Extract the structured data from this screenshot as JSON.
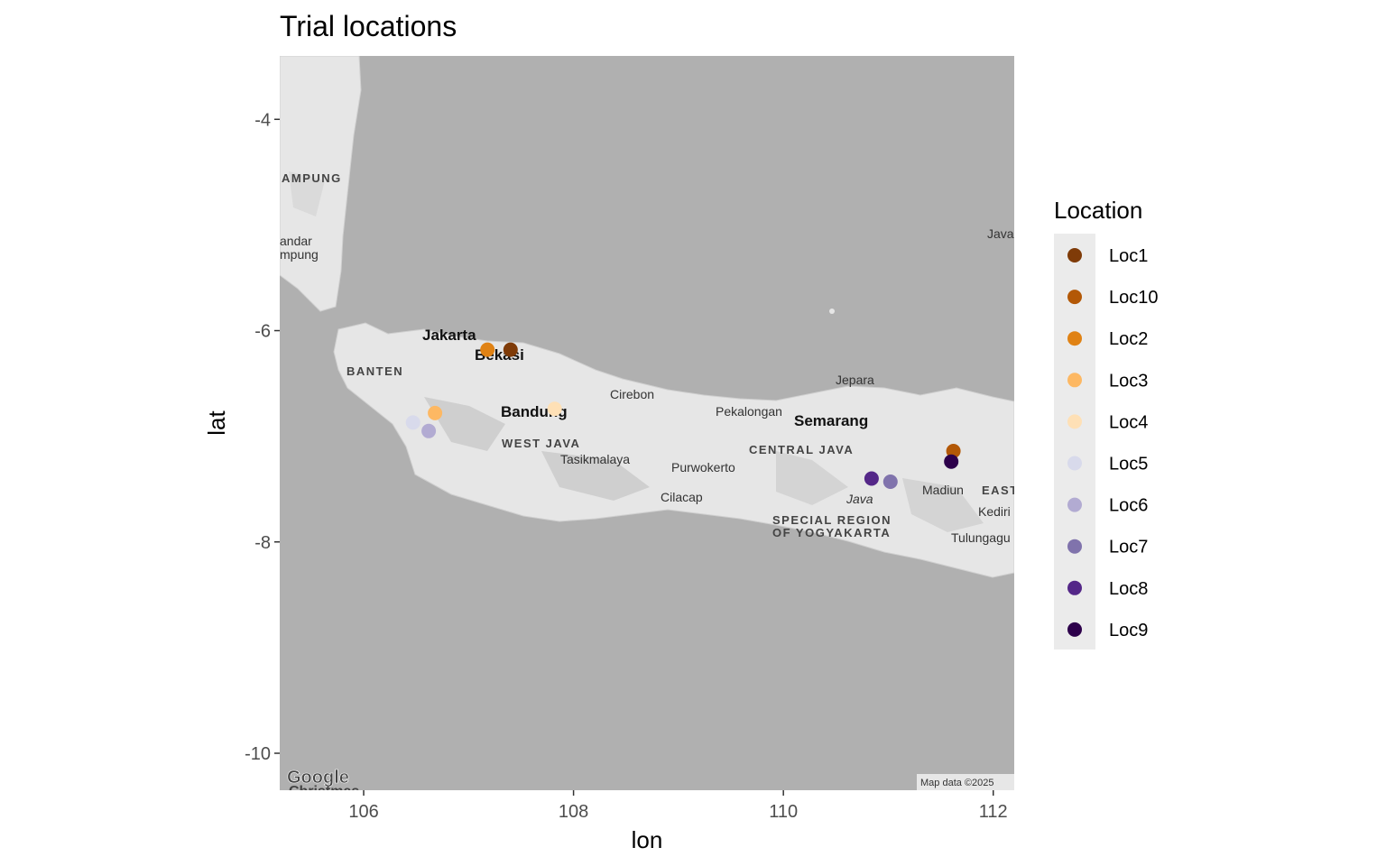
{
  "chart_data": {
    "type": "scatter",
    "title": "Trial locations",
    "xlabel": "lon",
    "ylabel": "lat",
    "xlim": [
      105.2,
      112.2
    ],
    "ylim": [
      -10.35,
      -3.4
    ],
    "xticks": [
      106,
      108,
      110,
      112
    ],
    "yticks": [
      -4,
      -6,
      -8,
      -10
    ],
    "xtick_labels": [
      "106",
      "108",
      "110",
      "112"
    ],
    "ytick_labels": [
      "-4",
      "-6",
      "-8",
      "-10"
    ],
    "legend": {
      "title": "Location",
      "placement": "right"
    },
    "series": [
      {
        "name": "Loc1",
        "color": "#7f3b08",
        "x": [
          107.4
        ],
        "y": [
          -6.18
        ]
      },
      {
        "name": "Loc10",
        "color": "#b35806",
        "x": [
          111.62
        ],
        "y": [
          -7.14
        ]
      },
      {
        "name": "Loc2",
        "color": "#e08214",
        "x": [
          107.18
        ],
        "y": [
          -6.18
        ]
      },
      {
        "name": "Loc3",
        "color": "#fdb863",
        "x": [
          106.68
        ],
        "y": [
          -6.78
        ]
      },
      {
        "name": "Loc4",
        "color": "#fee0b6",
        "x": [
          107.82
        ],
        "y": [
          -6.74
        ]
      },
      {
        "name": "Loc5",
        "color": "#d8daeb",
        "x": [
          106.47
        ],
        "y": [
          -6.87
        ]
      },
      {
        "name": "Loc6",
        "color": "#b2abd2",
        "x": [
          106.62
        ],
        "y": [
          -6.95
        ]
      },
      {
        "name": "Loc7",
        "color": "#8073ac",
        "x": [
          111.02
        ],
        "y": [
          -7.43
        ]
      },
      {
        "name": "Loc8",
        "color": "#542788",
        "x": [
          110.84
        ],
        "y": [
          -7.4
        ]
      },
      {
        "name": "Loc9",
        "color": "#2d004b",
        "x": [
          111.6
        ],
        "y": [
          -7.24
        ]
      }
    ]
  },
  "map": {
    "region_labels": [
      "AMPUNG",
      "BANTEN",
      "WEST JAVA",
      "CENTRAL JAVA",
      "SPECIAL REGION",
      "OF YOGYAKARTA",
      "EAST"
    ],
    "city_labels": [
      "Jakarta",
      "Bekasi",
      "Bandung",
      "Cirebon",
      "Pekalongan",
      "Semarang",
      "Jepara",
      "Tasikmalaya",
      "Purwokerto",
      "Cilacap",
      "Java",
      "Madiun",
      "Kediri",
      "Tulungagu",
      "andar",
      "mpung",
      "Java"
    ],
    "attribution": "Map data ©2025",
    "logo": "Google",
    "logo_sub": "Christmas"
  },
  "colors": {
    "sea": "#b0b0b0",
    "land": "#e8e8e8",
    "panel_bg": "#ebebeb"
  }
}
